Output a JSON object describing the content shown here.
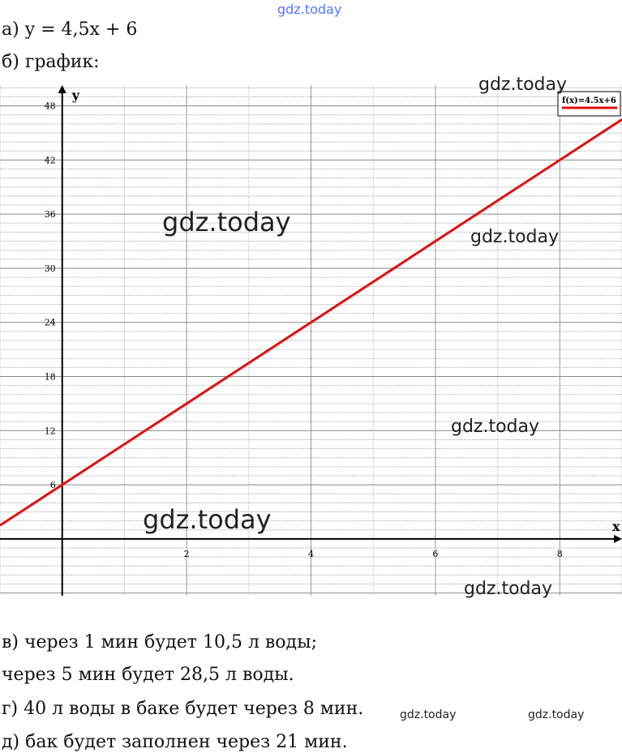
{
  "header": {
    "part_a": "а) y = 4,5x + 6",
    "part_b": "б) график:"
  },
  "answers": [
    "в) через 1 мин будет 10,5 л воды;",
    "через 5 мин будет 28,5 л воды.",
    "г) 40 л воды в баке будет через 8 мин.",
    "д) бак будет заполнен через 21 мин."
  ],
  "watermark": "gdz.today",
  "chart_data": {
    "type": "line",
    "title": "",
    "xlabel": "x",
    "ylabel": "y",
    "xlim": [
      -1,
      9
    ],
    "ylim": [
      -6.3,
      50.3
    ],
    "x_ticks": [
      2,
      4,
      6,
      8
    ],
    "y_ticks": [
      6,
      12,
      18,
      24,
      30,
      36,
      42,
      48
    ],
    "grid": true,
    "legend": "top-right",
    "series": [
      {
        "name": "f(x)=4.5x+6",
        "slope": 4.5,
        "intercept": 6,
        "x": [
          -1,
          9
        ],
        "y": [
          1.5,
          46.5
        ],
        "color": "#e01010"
      }
    ]
  }
}
